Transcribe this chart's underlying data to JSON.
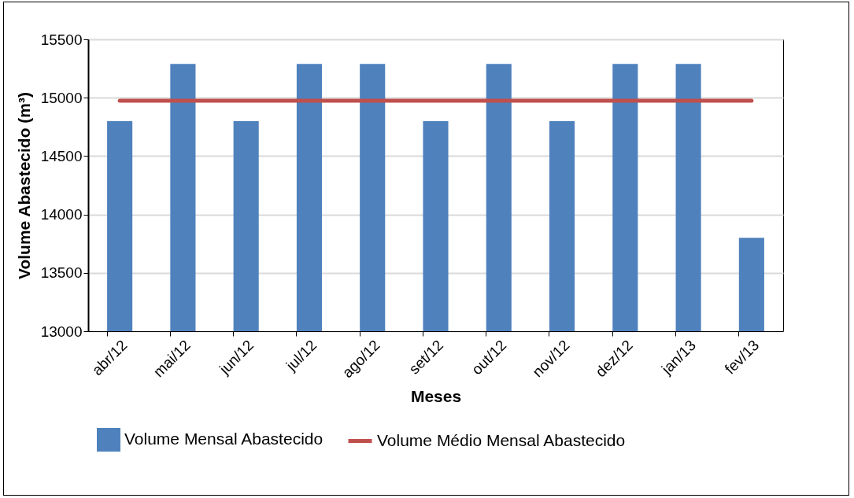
{
  "chart_data": {
    "type": "bar",
    "xlabel": "Meses",
    "ylabel": "Volume Abastecido (m³)",
    "categories": [
      "abr/12",
      "mai/12",
      "jun/12",
      "jul/12",
      "ago/12",
      "set/12",
      "out/12",
      "nov/12",
      "dez/12",
      "jan/13",
      "fev/13"
    ],
    "series": [
      {
        "name": "Volume Mensal Abastecido",
        "color": "#4f81bd",
        "values": [
          14800,
          15290,
          14800,
          15290,
          15290,
          14800,
          15290,
          14800,
          15290,
          15290,
          13800
        ]
      },
      {
        "name": "Volume Médio Mensal Abastecido",
        "type": "line",
        "color": "#c0504d",
        "values": [
          14975,
          14975,
          14975,
          14975,
          14975,
          14975,
          14975,
          14975,
          14975,
          14975,
          14975
        ]
      }
    ],
    "ylim": [
      13000,
      15500
    ],
    "yticks": [
      13000,
      13500,
      14000,
      14500,
      15000,
      15500
    ],
    "grid": "y",
    "legend": "bottom"
  }
}
